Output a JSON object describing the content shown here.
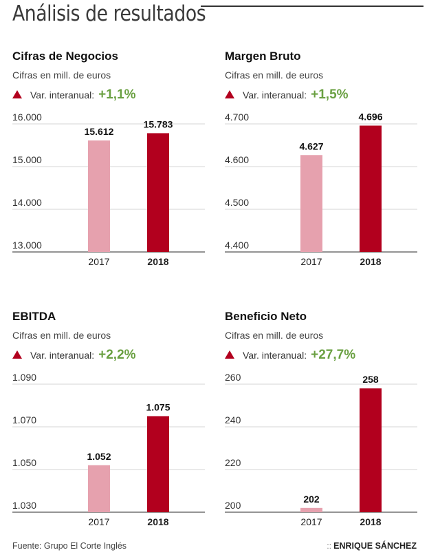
{
  "title": "Análisis de resultados",
  "source": "Fuente: Grupo El Corte Inglés",
  "author": "ENRIQUE SÁNCHEZ",
  "author_prefix": "::",
  "colors": {
    "bar_2017": "#e6a1ae",
    "bar_2018": "#b2001e",
    "increase": "#6aa042",
    "triangle": "#b2001e"
  },
  "var_label": "Var. interanual:",
  "chart_data": [
    {
      "type": "bar",
      "title": "Cifras de Negocios",
      "subtitle": "Cifras en mill. de euros",
      "variation": "+1,1%",
      "categories": [
        "2017",
        "2018"
      ],
      "values": [
        15612,
        15783
      ],
      "value_labels": [
        "15.612",
        "15.783"
      ],
      "ylim": [
        13000,
        16000
      ],
      "yticks": [
        13000,
        14000,
        15000,
        16000
      ],
      "ytick_labels": [
        "13.000",
        "14.000",
        "15.000",
        "16.000"
      ]
    },
    {
      "type": "bar",
      "title": "Margen Bruto",
      "subtitle": "Cifras en mill. de euros",
      "variation": "+1,5%",
      "categories": [
        "2017",
        "2018"
      ],
      "values": [
        4627,
        4696
      ],
      "value_labels": [
        "4.627",
        "4.696"
      ],
      "ylim": [
        4400,
        4700
      ],
      "yticks": [
        4400,
        4500,
        4600,
        4700
      ],
      "ytick_labels": [
        "4.400",
        "4.500",
        "4.600",
        "4.700"
      ]
    },
    {
      "type": "bar",
      "title": "EBITDA",
      "subtitle": "Cifras en mill. de euros",
      "variation": "+2,2%",
      "categories": [
        "2017",
        "2018"
      ],
      "values": [
        1052,
        1075
      ],
      "value_labels": [
        "1.052",
        "1.075"
      ],
      "ylim": [
        1030,
        1090
      ],
      "yticks": [
        1030,
        1050,
        1070,
        1090
      ],
      "ytick_labels": [
        "1.030",
        "1.050",
        "1.070",
        "1.090"
      ]
    },
    {
      "type": "bar",
      "title": "Beneficio Neto",
      "subtitle": "Cifras en mill. de euros",
      "variation": "+27,7%",
      "categories": [
        "2017",
        "2018"
      ],
      "values": [
        202,
        258
      ],
      "value_labels": [
        "202",
        "258"
      ],
      "ylim": [
        200,
        260
      ],
      "yticks": [
        200,
        220,
        240,
        260
      ],
      "ytick_labels": [
        "200",
        "220",
        "240",
        "260"
      ]
    }
  ]
}
